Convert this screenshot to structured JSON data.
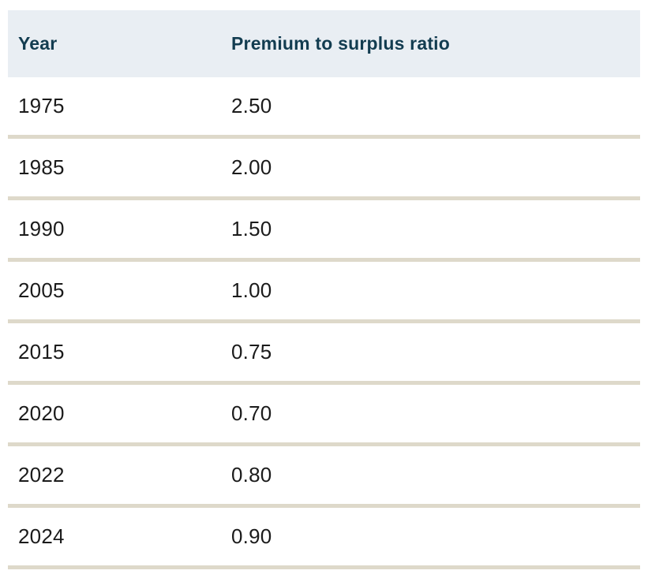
{
  "table": {
    "columns": {
      "year_label": "Year",
      "ratio_label": "Premium to surplus ratio"
    },
    "rows": [
      {
        "year": "1975",
        "ratio": "2.50"
      },
      {
        "year": "1985",
        "ratio": "2.00"
      },
      {
        "year": "1990",
        "ratio": "1.50"
      },
      {
        "year": "2005",
        "ratio": "1.00"
      },
      {
        "year": "2015",
        "ratio": "0.75"
      },
      {
        "year": "2020",
        "ratio": "0.70"
      },
      {
        "year": "2022",
        "ratio": "0.80"
      },
      {
        "year": "2024",
        "ratio": "0.90"
      }
    ]
  },
  "colors": {
    "header_background": "#e9eef3",
    "header_text": "#123c50",
    "body_text": "#1b1b1b",
    "divider": "#ded9ca",
    "page_background": "#ffffff"
  },
  "chart_data": {
    "type": "table",
    "title": "",
    "columns": [
      "Year",
      "Premium to surplus ratio"
    ],
    "categories": [
      "1975",
      "1985",
      "1990",
      "2005",
      "2015",
      "2020",
      "2022",
      "2024"
    ],
    "values": [
      2.5,
      2.0,
      1.5,
      1.0,
      0.75,
      0.7,
      0.8,
      0.9
    ],
    "xlabel": "Year",
    "ylabel": "Premium to surplus ratio"
  }
}
